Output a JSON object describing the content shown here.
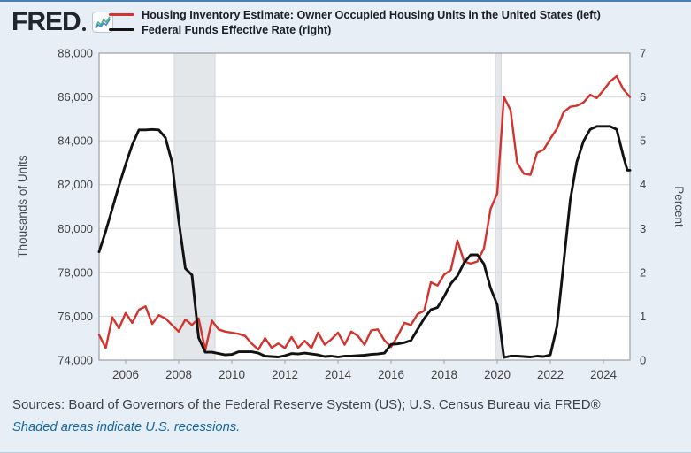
{
  "header": {
    "logo_text": "FRED",
    "legend": [
      {
        "label": "Housing Inventory Estimate: Owner Occupied Housing Units in the United States (left)",
        "color": "#d4322c"
      },
      {
        "label": "Federal Funds Effective Rate (right)",
        "color": "#121212"
      }
    ]
  },
  "chart_data": {
    "type": "line",
    "grid": true,
    "legend_position": "top",
    "plot_background": "#ffffff",
    "page_background": "#e8eef5",
    "gridline_color": "#d7d7d7",
    "frame_color": "#9aa0a6",
    "recession_band_color": "#e3e7ea",
    "x_axis": {
      "min": 2005.0,
      "max": 2025.0,
      "tick_years": [
        2006,
        2008,
        2010,
        2012,
        2014,
        2016,
        2018,
        2020,
        2022,
        2024
      ]
    },
    "left_axis": {
      "title": "Thousands of Units",
      "min": 74000,
      "max": 88000,
      "ticks": [
        {
          "value": 74000,
          "label": "74,000"
        },
        {
          "value": 76000,
          "label": "76,000"
        },
        {
          "value": 78000,
          "label": "78,000"
        },
        {
          "value": 80000,
          "label": "80,000"
        },
        {
          "value": 82000,
          "label": "82,000"
        },
        {
          "value": 84000,
          "label": "84,000"
        },
        {
          "value": 86000,
          "label": "86,000"
        },
        {
          "value": 88000,
          "label": "88,000"
        }
      ]
    },
    "right_axis": {
      "title": "Percent",
      "min": 0,
      "max": 7,
      "ticks": [
        {
          "value": 0,
          "label": "0"
        },
        {
          "value": 1,
          "label": "1"
        },
        {
          "value": 2,
          "label": "2"
        },
        {
          "value": 3,
          "label": "3"
        },
        {
          "value": 4,
          "label": "4"
        },
        {
          "value": 5,
          "label": "5"
        },
        {
          "value": 6,
          "label": "6"
        },
        {
          "value": 7,
          "label": "7"
        }
      ]
    },
    "recessions": [
      {
        "start": 2007.83,
        "end": 2009.37
      },
      {
        "start": 2019.93,
        "end": 2020.15
      }
    ],
    "series": [
      {
        "name": "Housing Inventory Estimate: Owner Occupied Housing Units in the United States",
        "axis": "left",
        "color": "#d4322c",
        "width": 2.4,
        "points": [
          [
            2005.0,
            75150
          ],
          [
            2005.25,
            74550
          ],
          [
            2005.5,
            75950
          ],
          [
            2005.75,
            75450
          ],
          [
            2006.0,
            76150
          ],
          [
            2006.25,
            75700
          ],
          [
            2006.5,
            76300
          ],
          [
            2006.75,
            76450
          ],
          [
            2007.0,
            75650
          ],
          [
            2007.25,
            76050
          ],
          [
            2007.5,
            75900
          ],
          [
            2007.75,
            75600
          ],
          [
            2008.0,
            75300
          ],
          [
            2008.25,
            75850
          ],
          [
            2008.5,
            75600
          ],
          [
            2008.75,
            75900
          ],
          [
            2009.0,
            74450
          ],
          [
            2009.25,
            75800
          ],
          [
            2009.5,
            75400
          ],
          [
            2009.75,
            75300
          ],
          [
            2010.0,
            75250
          ],
          [
            2010.25,
            75200
          ],
          [
            2010.5,
            75100
          ],
          [
            2010.75,
            74750
          ],
          [
            2011.0,
            74480
          ],
          [
            2011.25,
            75000
          ],
          [
            2011.5,
            74560
          ],
          [
            2011.75,
            74760
          ],
          [
            2012.0,
            74550
          ],
          [
            2012.25,
            75050
          ],
          [
            2012.5,
            74560
          ],
          [
            2012.75,
            74880
          ],
          [
            2013.0,
            74550
          ],
          [
            2013.25,
            75250
          ],
          [
            2013.5,
            74700
          ],
          [
            2013.75,
            74950
          ],
          [
            2014.0,
            75250
          ],
          [
            2014.25,
            74700
          ],
          [
            2014.5,
            75300
          ],
          [
            2014.75,
            75100
          ],
          [
            2015.0,
            74700
          ],
          [
            2015.25,
            75350
          ],
          [
            2015.5,
            75400
          ],
          [
            2015.75,
            74900
          ],
          [
            2016.0,
            74600
          ],
          [
            2016.25,
            75100
          ],
          [
            2016.5,
            75700
          ],
          [
            2016.75,
            75600
          ],
          [
            2017.0,
            76100
          ],
          [
            2017.25,
            76250
          ],
          [
            2017.5,
            77550
          ],
          [
            2017.75,
            77400
          ],
          [
            2018.0,
            77900
          ],
          [
            2018.25,
            78100
          ],
          [
            2018.5,
            79450
          ],
          [
            2018.75,
            78500
          ],
          [
            2019.0,
            78400
          ],
          [
            2019.25,
            78500
          ],
          [
            2019.5,
            79100
          ],
          [
            2019.75,
            80900
          ],
          [
            2020.0,
            81600
          ],
          [
            2020.25,
            86000
          ],
          [
            2020.5,
            85400
          ],
          [
            2020.75,
            83000
          ],
          [
            2021.0,
            82500
          ],
          [
            2021.25,
            82450
          ],
          [
            2021.5,
            83450
          ],
          [
            2021.75,
            83600
          ],
          [
            2022.0,
            84100
          ],
          [
            2022.25,
            84550
          ],
          [
            2022.5,
            85300
          ],
          [
            2022.75,
            85550
          ],
          [
            2023.0,
            85600
          ],
          [
            2023.25,
            85750
          ],
          [
            2023.5,
            86100
          ],
          [
            2023.75,
            85950
          ],
          [
            2024.0,
            86300
          ],
          [
            2024.25,
            86700
          ],
          [
            2024.5,
            86950
          ],
          [
            2024.75,
            86350
          ],
          [
            2025.0,
            86000
          ]
        ]
      },
      {
        "name": "Federal Funds Effective Rate",
        "axis": "right",
        "color": "#121212",
        "width": 2.9,
        "points": [
          [
            2005.0,
            2.47
          ],
          [
            2005.25,
            2.94
          ],
          [
            2005.5,
            3.46
          ],
          [
            2005.75,
            3.98
          ],
          [
            2006.0,
            4.46
          ],
          [
            2006.25,
            4.91
          ],
          [
            2006.5,
            5.25
          ],
          [
            2006.75,
            5.25
          ],
          [
            2007.0,
            5.26
          ],
          [
            2007.25,
            5.25
          ],
          [
            2007.5,
            5.07
          ],
          [
            2007.75,
            4.5
          ],
          [
            2008.0,
            3.18
          ],
          [
            2008.25,
            2.09
          ],
          [
            2008.5,
            1.94
          ],
          [
            2008.75,
            0.51
          ],
          [
            2009.0,
            0.18
          ],
          [
            2009.25,
            0.18
          ],
          [
            2009.5,
            0.15
          ],
          [
            2009.75,
            0.12
          ],
          [
            2010.0,
            0.13
          ],
          [
            2010.25,
            0.19
          ],
          [
            2010.5,
            0.19
          ],
          [
            2010.75,
            0.19
          ],
          [
            2011.0,
            0.16
          ],
          [
            2011.25,
            0.09
          ],
          [
            2011.5,
            0.08
          ],
          [
            2011.75,
            0.07
          ],
          [
            2012.0,
            0.1
          ],
          [
            2012.25,
            0.15
          ],
          [
            2012.5,
            0.14
          ],
          [
            2012.75,
            0.16
          ],
          [
            2013.0,
            0.14
          ],
          [
            2013.25,
            0.12
          ],
          [
            2013.5,
            0.08
          ],
          [
            2013.75,
            0.09
          ],
          [
            2014.0,
            0.07
          ],
          [
            2014.25,
            0.09
          ],
          [
            2014.5,
            0.09
          ],
          [
            2014.75,
            0.1
          ],
          [
            2015.0,
            0.11
          ],
          [
            2015.25,
            0.13
          ],
          [
            2015.5,
            0.14
          ],
          [
            2015.75,
            0.16
          ],
          [
            2016.0,
            0.36
          ],
          [
            2016.25,
            0.37
          ],
          [
            2016.5,
            0.4
          ],
          [
            2016.75,
            0.45
          ],
          [
            2017.0,
            0.7
          ],
          [
            2017.25,
            0.95
          ],
          [
            2017.5,
            1.15
          ],
          [
            2017.75,
            1.2
          ],
          [
            2018.0,
            1.45
          ],
          [
            2018.25,
            1.74
          ],
          [
            2018.5,
            1.92
          ],
          [
            2018.75,
            2.22
          ],
          [
            2019.0,
            2.4
          ],
          [
            2019.25,
            2.4
          ],
          [
            2019.5,
            2.19
          ],
          [
            2019.75,
            1.64
          ],
          [
            2020.0,
            1.26
          ],
          [
            2020.25,
            0.06
          ],
          [
            2020.5,
            0.09
          ],
          [
            2020.75,
            0.09
          ],
          [
            2021.0,
            0.08
          ],
          [
            2021.25,
            0.07
          ],
          [
            2021.5,
            0.09
          ],
          [
            2021.75,
            0.08
          ],
          [
            2022.0,
            0.12
          ],
          [
            2022.25,
            0.77
          ],
          [
            2022.5,
            2.2
          ],
          [
            2022.75,
            3.65
          ],
          [
            2023.0,
            4.52
          ],
          [
            2023.25,
            4.99
          ],
          [
            2023.5,
            5.26
          ],
          [
            2023.75,
            5.33
          ],
          [
            2024.0,
            5.33
          ],
          [
            2024.25,
            5.33
          ],
          [
            2024.5,
            5.26
          ],
          [
            2024.75,
            4.65
          ],
          [
            2024.9,
            4.33
          ],
          [
            2025.0,
            4.33
          ]
        ]
      }
    ]
  },
  "footer": {
    "sources": "Sources: Board of Governors of the Federal Reserve System (US); U.S. Census Bureau via FRED®",
    "note": "Shaded areas indicate U.S. recessions."
  }
}
